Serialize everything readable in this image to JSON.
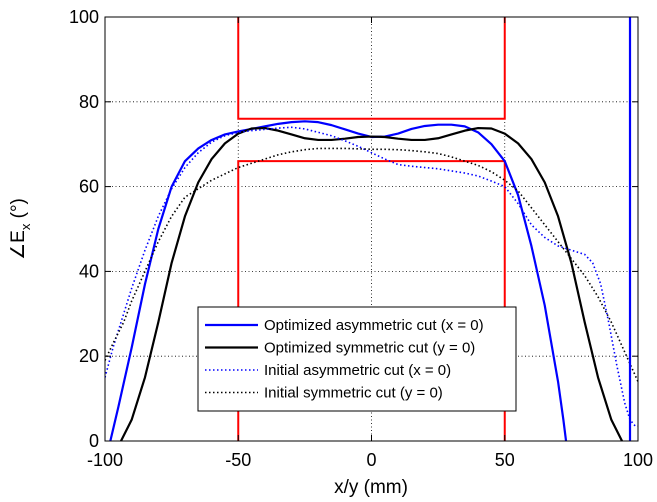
{
  "chart_data": {
    "type": "line",
    "xlabel": "x/y (mm)",
    "ylabel_prefix": "∠E",
    "ylabel_sub": "x",
    "ylabel_suffix": " (°)",
    "xlim": [
      -100,
      100
    ],
    "ylim": [
      0,
      100
    ],
    "xticks": [
      -100,
      -50,
      0,
      50,
      100
    ],
    "yticks": [
      0,
      20,
      40,
      60,
      80,
      100
    ],
    "grid": true,
    "grid_style": "dotted",
    "legend_placement": "lower-center",
    "colors": {
      "blue": "#0000ff",
      "black": "#000000",
      "red": "#ff0000"
    },
    "mask": {
      "color": "#ff0000",
      "lines": [
        [
          [
            -50,
            0
          ],
          [
            -50,
            66
          ],
          [
            50,
            66
          ],
          [
            50,
            0
          ]
        ],
        [
          [
            -50,
            100
          ],
          [
            -50,
            76
          ],
          [
            50,
            76
          ],
          [
            50,
            100
          ]
        ]
      ]
    },
    "series": [
      {
        "name": "Optimized asymmetric cut (x = 0)",
        "color": "#0000ff",
        "style": "solid",
        "width": 2.2,
        "points": [
          [
            -98,
            0
          ],
          [
            -95,
            8
          ],
          [
            -90,
            22
          ],
          [
            -85,
            37
          ],
          [
            -80,
            50
          ],
          [
            -75,
            60
          ],
          [
            -70,
            66
          ],
          [
            -65,
            69
          ],
          [
            -60,
            71
          ],
          [
            -55,
            72.3
          ],
          [
            -50,
            73
          ],
          [
            -45,
            73.6
          ],
          [
            -40,
            74.2
          ],
          [
            -35,
            74.8
          ],
          [
            -30,
            75.2
          ],
          [
            -25,
            75.4
          ],
          [
            -20,
            75.2
          ],
          [
            -15,
            74.5
          ],
          [
            -10,
            73.5
          ],
          [
            -5,
            72.5
          ],
          [
            0,
            71.7
          ],
          [
            5,
            71.8
          ],
          [
            10,
            72.5
          ],
          [
            15,
            73.6
          ],
          [
            20,
            74.3
          ],
          [
            25,
            74.6
          ],
          [
            30,
            74.6
          ],
          [
            35,
            74.2
          ],
          [
            40,
            72.8
          ],
          [
            45,
            70
          ],
          [
            50,
            66
          ],
          [
            55,
            58
          ],
          [
            60,
            46
          ],
          [
            65,
            32
          ],
          [
            70,
            14
          ],
          [
            72,
            5
          ],
          [
            73,
            0
          ]
        ]
      },
      {
        "name": "Optimized symmetric cut (y = 0)",
        "color": "#000000",
        "style": "solid",
        "width": 2.2,
        "points": [
          [
            -94,
            0
          ],
          [
            -90,
            5
          ],
          [
            -85,
            15
          ],
          [
            -80,
            28
          ],
          [
            -75,
            42
          ],
          [
            -70,
            53
          ],
          [
            -65,
            61
          ],
          [
            -60,
            66.5
          ],
          [
            -55,
            70.2
          ],
          [
            -50,
            72.5
          ],
          [
            -45,
            73.7
          ],
          [
            -40,
            73.8
          ],
          [
            -35,
            73.2
          ],
          [
            -30,
            72.3
          ],
          [
            -25,
            71.4
          ],
          [
            -20,
            71
          ],
          [
            -15,
            71
          ],
          [
            -10,
            71.3
          ],
          [
            -5,
            71.7
          ],
          [
            0,
            71.8
          ],
          [
            5,
            71.7
          ],
          [
            10,
            71.3
          ],
          [
            15,
            71
          ],
          [
            20,
            71
          ],
          [
            25,
            71.4
          ],
          [
            30,
            72.3
          ],
          [
            35,
            73.2
          ],
          [
            40,
            73.8
          ],
          [
            45,
            73.7
          ],
          [
            50,
            72.5
          ],
          [
            55,
            70.2
          ],
          [
            60,
            66.5
          ],
          [
            65,
            61
          ],
          [
            70,
            53
          ],
          [
            75,
            42
          ],
          [
            80,
            28
          ],
          [
            85,
            15
          ],
          [
            90,
            5
          ],
          [
            94,
            0
          ]
        ]
      },
      {
        "name": "Initial asymmetric cut (x = 0)",
        "color": "#0000ff",
        "style": "dotted",
        "width": 1.6,
        "points": [
          [
            -100,
            15
          ],
          [
            -97,
            22
          ],
          [
            -93,
            30
          ],
          [
            -90,
            36
          ],
          [
            -85,
            45
          ],
          [
            -80,
            53
          ],
          [
            -75,
            59.5
          ],
          [
            -70,
            64.5
          ],
          [
            -65,
            68
          ],
          [
            -60,
            70.5
          ],
          [
            -55,
            72
          ],
          [
            -50,
            72.8
          ],
          [
            -45,
            73.2
          ],
          [
            -40,
            73.5
          ],
          [
            -35,
            73.8
          ],
          [
            -30,
            74
          ],
          [
            -25,
            73.6
          ],
          [
            -20,
            72.8
          ],
          [
            -15,
            72
          ],
          [
            -10,
            70.8
          ],
          [
            -5,
            69.5
          ],
          [
            0,
            68
          ],
          [
            5,
            66.5
          ],
          [
            10,
            65.2
          ],
          [
            15,
            64.8
          ],
          [
            20,
            64.5
          ],
          [
            25,
            64.2
          ],
          [
            30,
            63.7
          ],
          [
            35,
            63.2
          ],
          [
            40,
            62.5
          ],
          [
            45,
            61.3
          ],
          [
            50,
            60
          ],
          [
            55,
            56
          ],
          [
            60,
            51
          ],
          [
            65,
            48
          ],
          [
            70,
            46
          ],
          [
            75,
            45
          ],
          [
            80,
            44
          ],
          [
            83,
            42
          ],
          [
            86,
            37
          ],
          [
            89,
            28
          ],
          [
            92,
            18
          ],
          [
            95,
            9
          ],
          [
            97,
            5
          ],
          [
            99,
            3.5
          ],
          [
            100,
            3.5
          ]
        ]
      },
      {
        "name": "Initial symmetric cut (y = 0)",
        "color": "#000000",
        "style": "dotted",
        "width": 1.6,
        "points": [
          [
            -100,
            19
          ],
          [
            -97,
            23
          ],
          [
            -93,
            28
          ],
          [
            -90,
            33
          ],
          [
            -85,
            40
          ],
          [
            -80,
            47
          ],
          [
            -75,
            53
          ],
          [
            -70,
            57.5
          ],
          [
            -65,
            59.5
          ],
          [
            -60,
            61.5
          ],
          [
            -55,
            63
          ],
          [
            -50,
            64.5
          ],
          [
            -45,
            65.5
          ],
          [
            -40,
            66.5
          ],
          [
            -35,
            67.5
          ],
          [
            -30,
            68.2
          ],
          [
            -25,
            68.7
          ],
          [
            -20,
            69
          ],
          [
            -15,
            69
          ],
          [
            -10,
            69
          ],
          [
            -5,
            68.9
          ],
          [
            0,
            68.8
          ],
          [
            5,
            68.8
          ],
          [
            10,
            68.7
          ],
          [
            15,
            68.5
          ],
          [
            20,
            68.2
          ],
          [
            25,
            67.8
          ],
          [
            30,
            67
          ],
          [
            35,
            66
          ],
          [
            40,
            65
          ],
          [
            45,
            63.5
          ],
          [
            50,
            61.5
          ],
          [
            55,
            59
          ],
          [
            60,
            55
          ],
          [
            65,
            51
          ],
          [
            70,
            47
          ],
          [
            75,
            43
          ],
          [
            80,
            39
          ],
          [
            85,
            34
          ],
          [
            90,
            28
          ],
          [
            95,
            21
          ],
          [
            100,
            14
          ]
        ]
      },
      {
        "name": "",
        "color": "#0000ff",
        "style": "solid",
        "width": 2.2,
        "points": [
          [
            97,
            0
          ],
          [
            97,
            100
          ]
        ]
      }
    ]
  }
}
